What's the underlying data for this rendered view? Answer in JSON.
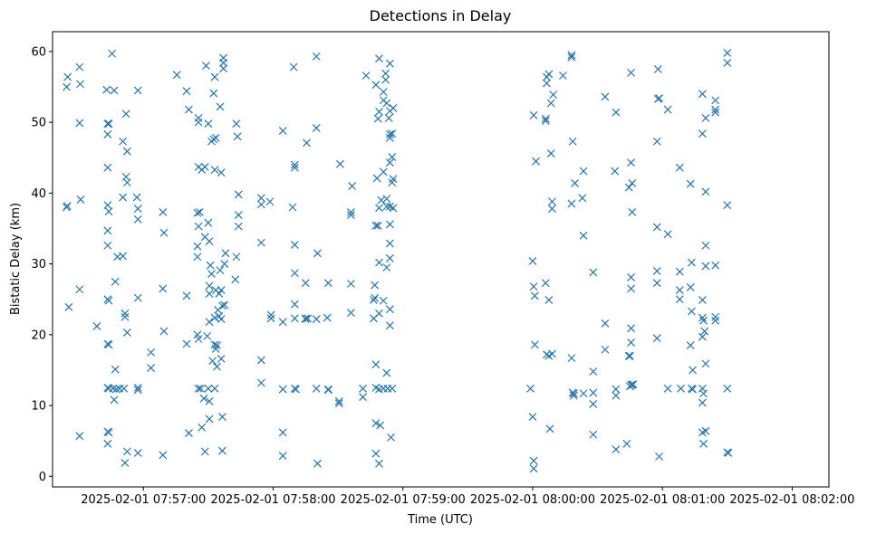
{
  "chart_data": {
    "type": "scatter",
    "title": "Detections in Delay",
    "xlabel": "Time (UTC)",
    "ylabel": "Bistatic Delay (km)",
    "marker": "x",
    "color": "#1f77b4",
    "grid": false,
    "x_range_seconds": [
      -42,
      317
    ],
    "x_ticks": [
      {
        "t": 0,
        "label": "2025-02-01 07:57:00"
      },
      {
        "t": 60,
        "label": "2025-02-01 07:58:00"
      },
      {
        "t": 120,
        "label": "2025-02-01 07:59:00"
      },
      {
        "t": 180,
        "label": "2025-02-01 08:00:00"
      },
      {
        "t": 240,
        "label": "2025-02-01 08:01:00"
      },
      {
        "t": 300,
        "label": "2025-02-01 08:02:00"
      }
    ],
    "ylim": [
      -1.5,
      62.8
    ],
    "y_ticks": [
      {
        "v": 0,
        "label": "0"
      },
      {
        "v": 10,
        "label": "10"
      },
      {
        "v": 20,
        "label": "20"
      },
      {
        "v": 30,
        "label": "30"
      },
      {
        "v": 40,
        "label": "40"
      },
      {
        "v": 50,
        "label": "50"
      },
      {
        "v": 60,
        "label": "60"
      }
    ],
    "points": [
      [
        -35.5,
        55.0
      ],
      [
        -35.0,
        56.4
      ],
      [
        -35.5,
        38.0
      ],
      [
        -35.2,
        38.2
      ],
      [
        -34.5,
        23.9
      ],
      [
        -29.5,
        57.8
      ],
      [
        -29.2,
        55.4
      ],
      [
        -29.5,
        49.9
      ],
      [
        -29.0,
        39.1
      ],
      [
        -29.5,
        26.4
      ],
      [
        -29.5,
        5.7
      ],
      [
        -21.5,
        21.2
      ],
      [
        -17.0,
        54.6
      ],
      [
        -16.5,
        49.8
      ],
      [
        -16.5,
        48.3
      ],
      [
        -16.0,
        49.8
      ],
      [
        -16.5,
        43.6
      ],
      [
        -16.5,
        38.3
      ],
      [
        -16.0,
        37.4
      ],
      [
        -16.5,
        34.7
      ],
      [
        -16.5,
        32.6
      ],
      [
        -16.5,
        25.0
      ],
      [
        -16.0,
        24.8
      ],
      [
        -16.5,
        18.7
      ],
      [
        -16.0,
        18.6
      ],
      [
        -16.5,
        12.5
      ],
      [
        -16.0,
        12.4
      ],
      [
        -16.5,
        6.3
      ],
      [
        -16.0,
        6.2
      ],
      [
        -16.5,
        4.6
      ],
      [
        -14.5,
        59.7
      ],
      [
        -14.0,
        12.4
      ],
      [
        -13.5,
        54.5
      ],
      [
        -13.5,
        10.8
      ],
      [
        -13.0,
        27.5
      ],
      [
        -13.0,
        15.1
      ],
      [
        -12.5,
        12.3
      ],
      [
        -12.0,
        31.0
      ],
      [
        -11.0,
        12.4
      ],
      [
        -9.5,
        47.3
      ],
      [
        -9.5,
        39.4
      ],
      [
        -9.5,
        31.1
      ],
      [
        -9.0,
        12.4
      ],
      [
        -8.5,
        23.0
      ],
      [
        -8.5,
        22.5
      ],
      [
        -8.0,
        51.2
      ],
      [
        -8.0,
        42.3
      ],
      [
        -7.5,
        45.9
      ],
      [
        -7.5,
        41.5
      ],
      [
        -7.5,
        20.3
      ],
      [
        -7.5,
        3.5
      ],
      [
        -8.5,
        1.9
      ],
      [
        -3.0,
        39.4
      ],
      [
        -2.5,
        37.8
      ],
      [
        -2.5,
        36.3
      ],
      [
        -2.5,
        54.5
      ],
      [
        -2.5,
        25.2
      ],
      [
        -2.5,
        12.5
      ],
      [
        -2.5,
        12.2
      ],
      [
        -2.5,
        3.3
      ],
      [
        3.5,
        17.5
      ],
      [
        3.5,
        15.3
      ],
      [
        9.0,
        37.3
      ],
      [
        9.5,
        34.4
      ],
      [
        9.0,
        26.5
      ],
      [
        9.5,
        20.5
      ],
      [
        9.0,
        3.0
      ],
      [
        15.5,
        56.7
      ],
      [
        20.0,
        54.4
      ],
      [
        21.0,
        51.8
      ],
      [
        20.0,
        25.5
      ],
      [
        20.0,
        18.7
      ],
      [
        21.0,
        6.1
      ],
      [
        25.5,
        50.6
      ],
      [
        25.5,
        50.0
      ],
      [
        25.5,
        43.7
      ],
      [
        25.0,
        37.2
      ],
      [
        26.0,
        37.3
      ],
      [
        25.5,
        35.3
      ],
      [
        25.0,
        32.5
      ],
      [
        25.0,
        31.0
      ],
      [
        25.0,
        20.0
      ],
      [
        25.5,
        19.4
      ],
      [
        25.5,
        12.4
      ],
      [
        26.5,
        12.4
      ],
      [
        27.0,
        43.3
      ],
      [
        27.0,
        6.9
      ],
      [
        28.0,
        11.0
      ],
      [
        28.5,
        43.7
      ],
      [
        28.5,
        33.8
      ],
      [
        28.5,
        3.5
      ],
      [
        29.0,
        58.0
      ],
      [
        29.5,
        19.8
      ],
      [
        30.0,
        49.8
      ],
      [
        30.0,
        35.8
      ],
      [
        30.0,
        12.4
      ],
      [
        30.5,
        33.2
      ],
      [
        30.5,
        26.9
      ],
      [
        30.5,
        25.8
      ],
      [
        30.5,
        21.8
      ],
      [
        30.5,
        10.6
      ],
      [
        30.5,
        8.1
      ],
      [
        31.0,
        29.8
      ],
      [
        31.5,
        47.3
      ],
      [
        31.5,
        28.6
      ],
      [
        32.0,
        16.3
      ],
      [
        32.5,
        54.1
      ],
      [
        32.5,
        47.6
      ],
      [
        33.0,
        56.4
      ],
      [
        33.0,
        43.3
      ],
      [
        33.0,
        22.4
      ],
      [
        33.0,
        18.6
      ],
      [
        33.0,
        12.4
      ],
      [
        33.5,
        47.8
      ],
      [
        33.5,
        26.3
      ],
      [
        33.5,
        18.0
      ],
      [
        34.0,
        15.5
      ],
      [
        34.0,
        18.5
      ],
      [
        34.5,
        23.5
      ],
      [
        35.0,
        25.8
      ],
      [
        35.0,
        22.6
      ],
      [
        35.5,
        52.2
      ],
      [
        35.5,
        29.1
      ],
      [
        36.0,
        42.9
      ],
      [
        36.0,
        26.3
      ],
      [
        36.0,
        22.2
      ],
      [
        36.0,
        16.6
      ],
      [
        36.5,
        24.1
      ],
      [
        36.5,
        8.4
      ],
      [
        36.5,
        3.6
      ],
      [
        37.0,
        59.1
      ],
      [
        37.0,
        58.4
      ],
      [
        37.0,
        57.6
      ],
      [
        37.5,
        30.0
      ],
      [
        37.5,
        24.2
      ],
      [
        38.0,
        31.5
      ],
      [
        42.5,
        27.8
      ],
      [
        43.0,
        49.8
      ],
      [
        43.0,
        31.0
      ],
      [
        43.5,
        48.0
      ],
      [
        44.0,
        39.8
      ],
      [
        44.0,
        36.9
      ],
      [
        44.0,
        35.3
      ],
      [
        54.5,
        38.4
      ],
      [
        54.5,
        39.3
      ],
      [
        54.5,
        33.0
      ],
      [
        54.5,
        16.4
      ],
      [
        54.5,
        13.2
      ],
      [
        58.5,
        38.8
      ],
      [
        59.0,
        22.8
      ],
      [
        59.0,
        22.3
      ],
      [
        64.5,
        48.8
      ],
      [
        64.5,
        21.8
      ],
      [
        64.5,
        12.3
      ],
      [
        64.5,
        6.2
      ],
      [
        64.5,
        2.9
      ],
      [
        69.5,
        57.8
      ],
      [
        69.0,
        38.0
      ],
      [
        70.0,
        44.0
      ],
      [
        70.0,
        43.6
      ],
      [
        70.0,
        32.7
      ],
      [
        70.0,
        28.7
      ],
      [
        70.0,
        24.3
      ],
      [
        70.0,
        22.3
      ],
      [
        70.0,
        12.4
      ],
      [
        70.5,
        12.3
      ],
      [
        75.0,
        22.3
      ],
      [
        75.0,
        27.3
      ],
      [
        75.5,
        47.1
      ],
      [
        75.0,
        22.2
      ],
      [
        76.0,
        22.3
      ],
      [
        80.0,
        59.3
      ],
      [
        80.0,
        49.2
      ],
      [
        80.5,
        31.5
      ],
      [
        80.0,
        22.2
      ],
      [
        80.0,
        12.4
      ],
      [
        80.5,
        1.8
      ],
      [
        85.5,
        27.3
      ],
      [
        85.0,
        22.4
      ],
      [
        85.5,
        12.3
      ],
      [
        85.5,
        12.2
      ],
      [
        91.0,
        44.1
      ],
      [
        90.5,
        10.6
      ],
      [
        90.5,
        10.3
      ],
      [
        96.5,
        41.0
      ],
      [
        96.0,
        37.3
      ],
      [
        96.0,
        36.9
      ],
      [
        96.0,
        27.2
      ],
      [
        96.0,
        23.1
      ],
      [
        101.5,
        12.4
      ],
      [
        101.5,
        11.2
      ],
      [
        103.0,
        56.6
      ],
      [
        106.5,
        24.9
      ],
      [
        106.5,
        22.3
      ],
      [
        107.5,
        55.3
      ],
      [
        107.0,
        27.0
      ],
      [
        107.0,
        25.2
      ],
      [
        107.5,
        35.4
      ],
      [
        107.5,
        15.8
      ],
      [
        107.5,
        12.5
      ],
      [
        107.5,
        7.5
      ],
      [
        107.5,
        3.2
      ],
      [
        108.0,
        42.1
      ],
      [
        108.5,
        35.4
      ],
      [
        108.5,
        50.5
      ],
      [
        109.0,
        59.0
      ],
      [
        109.0,
        51.5
      ],
      [
        109.0,
        37.9
      ],
      [
        109.0,
        30.2
      ],
      [
        109.0,
        23.0
      ],
      [
        109.0,
        12.3
      ],
      [
        109.5,
        7.2
      ],
      [
        109.0,
        1.8
      ],
      [
        110.0,
        39.0
      ],
      [
        111.0,
        54.3
      ],
      [
        111.0,
        53.1
      ],
      [
        111.0,
        43.0
      ],
      [
        111.0,
        24.8
      ],
      [
        111.0,
        12.4
      ],
      [
        112.0,
        56.9
      ],
      [
        112.0,
        56.0
      ],
      [
        112.5,
        52.7
      ],
      [
        112.5,
        39.2
      ],
      [
        112.5,
        38.1
      ],
      [
        112.5,
        29.5
      ],
      [
        112.5,
        14.6
      ],
      [
        113.0,
        12.4
      ],
      [
        113.5,
        50.6
      ],
      [
        114.0,
        58.3
      ],
      [
        114.0,
        51.6
      ],
      [
        114.0,
        48.3
      ],
      [
        114.0,
        47.8
      ],
      [
        114.0,
        44.3
      ],
      [
        114.0,
        38.1
      ],
      [
        114.0,
        35.6
      ],
      [
        114.0,
        32.9
      ],
      [
        114.0,
        30.8
      ],
      [
        114.0,
        23.6
      ],
      [
        114.0,
        21.3
      ],
      [
        114.5,
        5.5
      ],
      [
        115.0,
        12.4
      ],
      [
        115.5,
        52.0
      ],
      [
        115.0,
        48.4
      ],
      [
        115.0,
        45.1
      ],
      [
        115.0,
        41.5
      ],
      [
        115.5,
        42.0
      ],
      [
        115.5,
        37.9
      ],
      [
        179.0,
        12.4
      ],
      [
        180.0,
        30.4
      ],
      [
        180.0,
        8.4
      ],
      [
        180.5,
        51.0
      ],
      [
        180.5,
        26.8
      ],
      [
        180.5,
        2.2
      ],
      [
        180.5,
        1.1
      ],
      [
        181.0,
        25.5
      ],
      [
        181.0,
        18.6
      ],
      [
        181.5,
        44.5
      ],
      [
        186.5,
        56.4
      ],
      [
        186.5,
        55.5
      ],
      [
        186.0,
        50.5
      ],
      [
        186.0,
        50.2
      ],
      [
        186.0,
        27.3
      ],
      [
        186.5,
        17.2
      ],
      [
        187.5,
        56.8
      ],
      [
        187.5,
        24.9
      ],
      [
        187.5,
        17.0
      ],
      [
        188.0,
        6.7
      ],
      [
        188.5,
        52.7
      ],
      [
        188.5,
        45.6
      ],
      [
        189.0,
        38.8
      ],
      [
        189.0,
        37.8
      ],
      [
        189.0,
        17.3
      ],
      [
        189.5,
        53.9
      ],
      [
        194.0,
        56.6
      ],
      [
        198.0,
        59.5
      ],
      [
        198.0,
        59.2
      ],
      [
        198.0,
        38.5
      ],
      [
        198.0,
        16.7
      ],
      [
        198.5,
        47.3
      ],
      [
        198.5,
        11.8
      ],
      [
        199.0,
        11.4
      ],
      [
        199.5,
        41.4
      ],
      [
        199.0,
        11.7
      ],
      [
        203.0,
        39.3
      ],
      [
        203.5,
        43.1
      ],
      [
        203.5,
        34.0
      ],
      [
        203.5,
        11.7
      ],
      [
        208.0,
        28.8
      ],
      [
        208.0,
        14.8
      ],
      [
        208.0,
        11.8
      ],
      [
        208.0,
        10.2
      ],
      [
        208.0,
        5.9
      ],
      [
        213.5,
        53.6
      ],
      [
        213.5,
        21.6
      ],
      [
        213.5,
        17.9
      ],
      [
        218.0,
        43.1
      ],
      [
        218.5,
        51.4
      ],
      [
        218.5,
        12.3
      ],
      [
        218.5,
        11.4
      ],
      [
        218.5,
        3.8
      ],
      [
        223.5,
        4.6
      ],
      [
        224.5,
        17.0
      ],
      [
        224.5,
        40.8
      ],
      [
        225.0,
        12.7
      ],
      [
        225.0,
        17.0
      ],
      [
        225.5,
        57.0
      ],
      [
        225.5,
        44.3
      ],
      [
        225.5,
        28.1
      ],
      [
        225.5,
        26.5
      ],
      [
        225.5,
        20.9
      ],
      [
        225.5,
        18.9
      ],
      [
        225.5,
        12.9
      ],
      [
        226.0,
        41.4
      ],
      [
        226.0,
        37.3
      ],
      [
        226.5,
        13.0
      ],
      [
        226.0,
        12.9
      ],
      [
        237.5,
        47.3
      ],
      [
        237.5,
        35.2
      ],
      [
        237.5,
        29.0
      ],
      [
        237.5,
        27.3
      ],
      [
        237.5,
        19.5
      ],
      [
        238.0,
        57.5
      ],
      [
        238.0,
        53.3
      ],
      [
        238.5,
        53.4
      ],
      [
        238.5,
        2.8
      ],
      [
        242.5,
        51.8
      ],
      [
        242.5,
        34.2
      ],
      [
        242.5,
        12.4
      ],
      [
        248.0,
        43.6
      ],
      [
        248.0,
        28.9
      ],
      [
        248.0,
        26.3
      ],
      [
        248.0,
        25.0
      ],
      [
        248.5,
        12.4
      ],
      [
        253.0,
        41.3
      ],
      [
        253.0,
        26.7
      ],
      [
        253.0,
        18.5
      ],
      [
        253.5,
        12.4
      ],
      [
        253.5,
        30.2
      ],
      [
        253.5,
        23.3
      ],
      [
        254.0,
        15.0
      ],
      [
        254.0,
        12.3
      ],
      [
        258.5,
        54.0
      ],
      [
        258.5,
        48.4
      ],
      [
        258.5,
        24.9
      ],
      [
        258.5,
        22.4
      ],
      [
        258.5,
        19.7
      ],
      [
        258.5,
        12.4
      ],
      [
        258.5,
        10.4
      ],
      [
        258.5,
        6.2
      ],
      [
        259.0,
        11.7
      ],
      [
        259.0,
        4.6
      ],
      [
        259.0,
        22.0
      ],
      [
        259.5,
        20.5
      ],
      [
        260.0,
        50.6
      ],
      [
        260.0,
        40.2
      ],
      [
        260.0,
        32.6
      ],
      [
        260.0,
        29.7
      ],
      [
        260.0,
        15.9
      ],
      [
        260.0,
        6.4
      ],
      [
        264.5,
        51.4
      ],
      [
        264.5,
        51.8
      ],
      [
        264.5,
        53.1
      ],
      [
        264.5,
        29.8
      ],
      [
        264.5,
        22.5
      ],
      [
        264.5,
        22.0
      ],
      [
        270.0,
        59.8
      ],
      [
        270.0,
        58.4
      ],
      [
        270.0,
        38.3
      ],
      [
        270.0,
        12.4
      ],
      [
        270.5,
        3.3
      ],
      [
        270.0,
        3.4
      ]
    ]
  }
}
